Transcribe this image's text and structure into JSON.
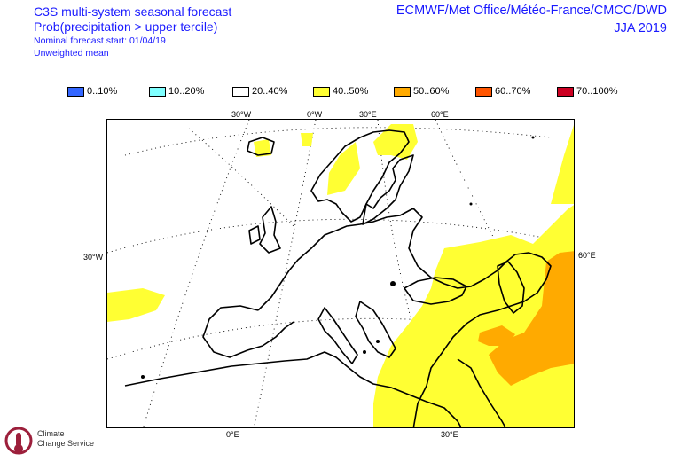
{
  "header": {
    "title": "C3S multi-system seasonal forecast",
    "subtitle": "Prob(precipitation > upper tercile)",
    "start": "Nominal forecast start: 01/04/19",
    "method": "Unweighted mean",
    "centres": "ECMWF/Met Office/Météo-France/CMCC/DWD",
    "season": "JJA 2019"
  },
  "legend": [
    {
      "label": "0..10%",
      "color": "#3366ff"
    },
    {
      "label": "10..20%",
      "color": "#7fffff"
    },
    {
      "label": "20..40%",
      "color": "#ffffff"
    },
    {
      "label": "40..50%",
      "color": "#ffff33"
    },
    {
      "label": "50..60%",
      "color": "#ffaa00"
    },
    {
      "label": "60..70%",
      "color": "#ff5500"
    },
    {
      "label": "70..100%",
      "color": "#cc0022"
    }
  ],
  "graticule": {
    "top": [
      "30°W",
      "0°W",
      "30°E",
      "60°E"
    ],
    "left": "30°W",
    "right": "60°E",
    "bottom": [
      "0°E",
      "30°E"
    ]
  },
  "logo": {
    "name_line1": "Climate",
    "name_line2": "Change Service"
  }
}
